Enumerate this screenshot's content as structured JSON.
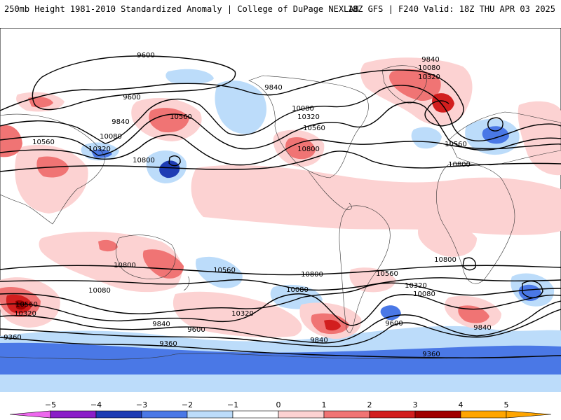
{
  "header": {
    "left": "250mb Height 1981-2010 Standardized Anomaly | College of DuPage NEXLAB",
    "right": "18Z GFS | F240 Valid: 18Z THU APR 03 2025"
  },
  "colors": {
    "neg5": "#ee66ee",
    "neg4": "#8a1ec8",
    "neg3": "#1e3cb4",
    "neg2": "#4a78e6",
    "neg1": "#bcdcfa",
    "zero": "#ffffff",
    "pos1": "#fcd2d2",
    "pos2": "#f07474",
    "pos3": "#d21e1e",
    "pos4": "#a00000",
    "pos5": "#ffa500"
  },
  "colorbar": {
    "ticks": [
      "−5",
      "−4",
      "−3",
      "−2",
      "−1",
      "0",
      "1",
      "2",
      "3",
      "4",
      "5"
    ],
    "bins": [
      "neg5",
      "neg4",
      "neg3",
      "neg2",
      "neg1",
      "zero",
      "pos1",
      "pos2",
      "pos3",
      "pos4",
      "pos5"
    ]
  },
  "contour_labels": [
    {
      "text": "9600"
    },
    {
      "text": "9600"
    },
    {
      "text": "9840"
    },
    {
      "text": "10080"
    },
    {
      "text": "10560"
    },
    {
      "text": "10320"
    },
    {
      "text": "10800"
    },
    {
      "text": "10560"
    },
    {
      "text": "9840"
    },
    {
      "text": "10080"
    },
    {
      "text": "10320"
    },
    {
      "text": "10560"
    },
    {
      "text": "10800"
    },
    {
      "text": "9840"
    },
    {
      "text": "10080"
    },
    {
      "text": "10320"
    },
    {
      "text": "10560"
    },
    {
      "text": "10800"
    },
    {
      "text": "10800"
    },
    {
      "text": "10560"
    },
    {
      "text": "10800"
    },
    {
      "text": "10800"
    },
    {
      "text": "10560"
    },
    {
      "text": "10320"
    },
    {
      "text": "10080"
    },
    {
      "text": "10080"
    },
    {
      "text": "10080"
    },
    {
      "text": "10320"
    },
    {
      "text": "10560"
    },
    {
      "text": "10320"
    },
    {
      "text": "9840"
    },
    {
      "text": "9600"
    },
    {
      "text": "9840"
    },
    {
      "text": "9360"
    },
    {
      "text": "9360"
    },
    {
      "text": "9360"
    },
    {
      "text": "9840"
    },
    {
      "text": "9600"
    }
  ]
}
